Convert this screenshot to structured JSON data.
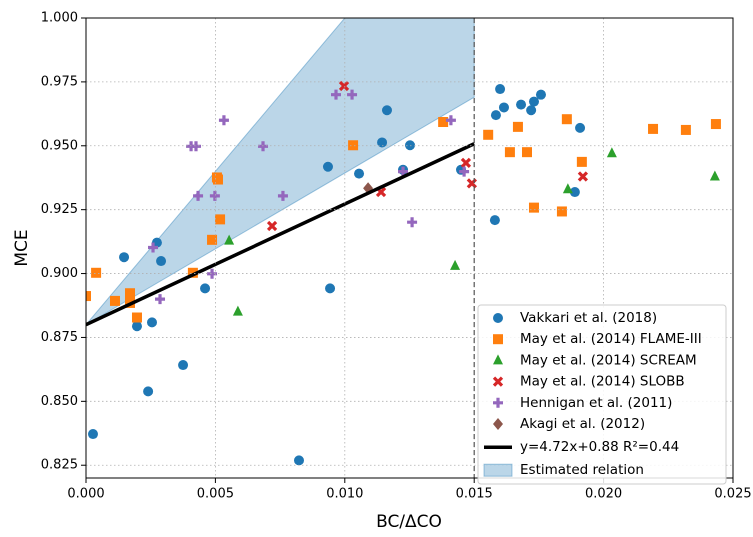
{
  "chart_data": {
    "type": "scatter",
    "x_label": "BC/ΔCO",
    "y_label": "MCE",
    "xlim": [
      0,
      0.025
    ],
    "ylim": [
      0.82,
      1.0
    ],
    "xticks": [
      {
        "value": 0,
        "label": "0.000"
      },
      {
        "value": 0.005,
        "label": "0.005"
      },
      {
        "value": 0.01,
        "label": "0.010"
      },
      {
        "value": 0.015,
        "label": "0.015"
      },
      {
        "value": 0.02,
        "label": "0.020"
      },
      {
        "value": 0.025,
        "label": "0.025"
      }
    ],
    "yticks": [
      {
        "value": 0.825,
        "label": "0.825"
      },
      {
        "value": 0.85,
        "label": "0.850"
      },
      {
        "value": 0.875,
        "label": "0.875"
      },
      {
        "value": 0.9,
        "label": "0.900"
      },
      {
        "value": 0.925,
        "label": "0.925"
      },
      {
        "value": 0.95,
        "label": "0.950"
      },
      {
        "value": 0.975,
        "label": "0.975"
      },
      {
        "value": 1.0,
        "label": "1.000"
      }
    ],
    "grid": true,
    "legend": "lower right",
    "vline": 0.015,
    "series": [
      {
        "name": "Vakkari et al. (2018)",
        "color": "#1f77b4",
        "marker": "circle",
        "x": [
          0.00027,
          0.00147,
          0.00197,
          0.0024,
          0.00255,
          0.00274,
          0.0029,
          0.00375,
          0.0046,
          0.00823,
          0.00935,
          0.00943,
          0.01055,
          0.01144,
          0.01163,
          0.01225,
          0.01252,
          0.01449,
          0.0158,
          0.01584,
          0.016,
          0.01615,
          0.01681,
          0.0172,
          0.01731,
          0.01758,
          0.01889,
          0.01909
        ],
        "y": [
          0.8372,
          0.9064,
          0.8794,
          0.8539,
          0.8809,
          0.9121,
          0.9049,
          0.8642,
          0.8942,
          0.8269,
          0.9418,
          0.8942,
          0.9391,
          0.9513,
          0.9639,
          0.9406,
          0.9502,
          0.9406,
          0.9209,
          0.962,
          0.9722,
          0.965,
          0.9661,
          0.9639,
          0.9673,
          0.97,
          0.9319,
          0.957
        ]
      },
      {
        "name": "May et al. (2014) FLAME-III",
        "color": "#ff7f0e",
        "marker": "square",
        "x": [
          0,
          0.00039,
          0.00112,
          0.0017,
          0.0017,
          0.00197,
          0.00413,
          0.00487,
          0.00506,
          0.0051,
          0.00518,
          0.01032,
          0.0138,
          0.01554,
          0.01638,
          0.01669,
          0.01704,
          0.01731,
          0.01839,
          0.01858,
          0.01916,
          0.02191,
          0.02318,
          0.02434
        ],
        "y": [
          0.8912,
          0.9003,
          0.8893,
          0.8923,
          0.8885,
          0.8828,
          0.9003,
          0.9132,
          0.9376,
          0.9368,
          0.9212,
          0.9502,
          0.9593,
          0.9543,
          0.9475,
          0.9574,
          0.9475,
          0.9258,
          0.9243,
          0.9604,
          0.9437,
          0.9566,
          0.9562,
          0.9585
        ]
      },
      {
        "name": "May et al. (2014) SCREAM",
        "color": "#2ca02c",
        "marker": "triangle",
        "x": [
          0.00553,
          0.00587,
          0.01426,
          0.01862,
          0.02032,
          0.0243
        ],
        "y": [
          0.9129,
          0.8851,
          0.903,
          0.933,
          0.9471,
          0.938
        ]
      },
      {
        "name": "May et al. (2014) SLOBB",
        "color": "#d62728",
        "marker": "x",
        "x": [
          0.00719,
          0.00997,
          0.0114,
          0.01468,
          0.01491,
          0.0192
        ],
        "y": [
          0.9186,
          0.9734,
          0.9319,
          0.9433,
          0.9353,
          0.938
        ]
      },
      {
        "name": "Hennigan et al. (2011)",
        "color": "#9467bd",
        "marker": "plus",
        "x": [
          0.00259,
          0.00286,
          0.00406,
          0.00425,
          0.00433,
          0.00487,
          0.00498,
          0.00533,
          0.00684,
          0.00761,
          0.00966,
          0.01028,
          0.01225,
          0.0126,
          0.0141,
          0.01461
        ],
        "y": [
          0.9102,
          0.89,
          0.9498,
          0.9498,
          0.9304,
          0.8999,
          0.9304,
          0.96,
          0.9498,
          0.9304,
          0.97,
          0.97,
          0.9399,
          0.9201,
          0.96,
          0.9399
        ]
      },
      {
        "name": "Akagi et al. (2012)",
        "color": "#8c564b",
        "marker": "diamond",
        "x": [
          0.0109
        ],
        "y": [
          0.9334
        ]
      }
    ],
    "fit": {
      "name": "y=4.72x+0.88 R²=0.44",
      "color": "#000000",
      "slope": 4.72,
      "intercept": 0.88,
      "x": [
        0,
        0.015
      ]
    },
    "band": {
      "name": "Estimated relation",
      "color": "#1f77b4",
      "x": [
        0,
        0.015
      ],
      "lower": [
        0.88,
        0.969
      ],
      "upper": [
        0.88,
        1.06
      ]
    }
  }
}
